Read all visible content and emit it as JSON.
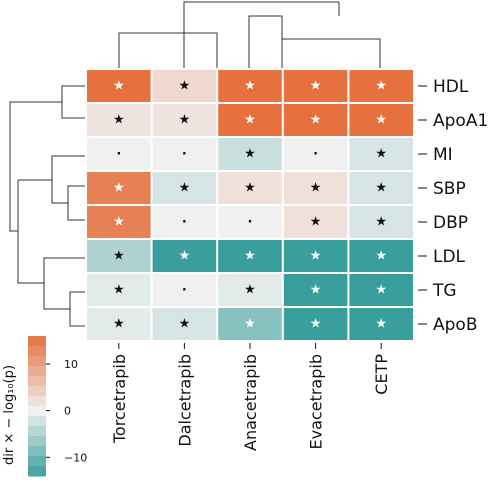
{
  "chart_data": {
    "type": "heatmap",
    "rows": [
      "HDL",
      "ApoA1",
      "MI",
      "SBP",
      "DBP",
      "LDL",
      "TG",
      "ApoB"
    ],
    "columns": [
      "Torcetrapib",
      "Dalcetrapib",
      "Anacetrapib",
      "Evacetrapib",
      "CETP"
    ],
    "values": [
      [
        16,
        3,
        16,
        16,
        16
      ],
      [
        1.5,
        1.5,
        16,
        16,
        16
      ],
      [
        0,
        0,
        -3,
        0,
        -2
      ],
      [
        14,
        -2,
        2,
        2,
        -2
      ],
      [
        14,
        0,
        0,
        2,
        -2
      ],
      [
        -5,
        -14,
        -14,
        -14,
        -14
      ],
      [
        -1,
        0,
        -1,
        -14,
        -14
      ],
      [
        -1,
        -2,
        -8,
        -14,
        -14
      ]
    ],
    "significance": [
      [
        "star",
        "star",
        "star",
        "star",
        "star"
      ],
      [
        "star",
        "star",
        "star",
        "star",
        "star"
      ],
      [
        "dot",
        "dot",
        "star",
        "dot",
        "star"
      ],
      [
        "star",
        "star",
        "star",
        "star",
        "star"
      ],
      [
        "star",
        "dot",
        "dot",
        "star",
        "star"
      ],
      [
        "star",
        "star",
        "star",
        "star",
        "star"
      ],
      [
        "star",
        "dot",
        "star",
        "star",
        "star"
      ],
      [
        "star",
        "star",
        "star",
        "star",
        "star"
      ]
    ],
    "colorbar": {
      "title": "dir × − log₁₀(p)",
      "range": [
        -14,
        16
      ],
      "ticks": [
        10,
        0,
        -10
      ],
      "tick_labels": [
        "10",
        "0",
        "−10"
      ],
      "colors": [
        "#3a9f9c",
        "#f0f0f0",
        "#e6713f"
      ]
    },
    "marks": {
      "star": "★",
      "dot": "."
    },
    "xlabel": "",
    "ylabel": ""
  }
}
